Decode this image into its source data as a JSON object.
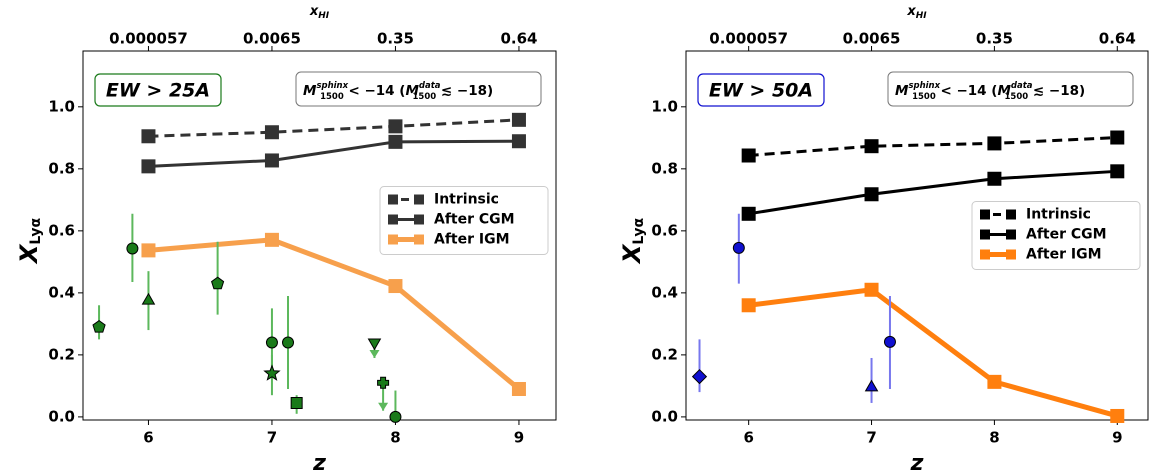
{
  "chart_data": [
    {
      "type": "line",
      "xlabel": "z",
      "ylabel_parts": [
        "X",
        "Lyα"
      ],
      "top_axis_label_parts": [
        "x",
        "HI"
      ],
      "box_label": "EW > 25A",
      "box_color": "#1a7a1a",
      "note_parts": [
        "M",
        "sphinx",
        "1500",
        " < −14 (",
        "M",
        "data",
        "1500",
        " ≲ −18)"
      ],
      "xlim": [
        5.47,
        9.3
      ],
      "ylim": [
        -0.01,
        1.18
      ],
      "xticks": [
        6,
        7,
        8,
        9
      ],
      "x2ticks": [
        {
          "value": 6,
          "label": "0.000057"
        },
        {
          "value": 7,
          "label": "0.0065"
        },
        {
          "value": 8,
          "label": "0.35"
        },
        {
          "value": 9,
          "label": "0.64"
        }
      ],
      "yticks": [
        {
          "value": 0,
          "label": "0.0"
        },
        {
          "value": 0.2,
          "label": "0.2"
        },
        {
          "value": 0.4,
          "label": "0.4"
        },
        {
          "value": 0.6,
          "label": "0.6"
        },
        {
          "value": 0.8,
          "label": "0.8"
        },
        {
          "value": 1.0,
          "label": "1.0"
        }
      ],
      "legend": "center right",
      "x": [
        6,
        7,
        8,
        9
      ],
      "series": [
        {
          "name": "Intrinsic",
          "color": "#333333",
          "dash": true,
          "values": [
            0.905,
            0.918,
            0.937,
            0.958
          ]
        },
        {
          "name": "After CGM",
          "color": "#333333",
          "dash": false,
          "values": [
            0.808,
            0.827,
            0.887,
            0.889
          ]
        },
        {
          "name": "After IGM",
          "color": "#f7a04c",
          "dash": false,
          "values": [
            0.537,
            0.571,
            0.422,
            0.09
          ]
        }
      ],
      "point_color": "#1a7a1a",
      "err_color": "#5cb85c",
      "points": [
        {
          "marker": "pentagon",
          "x": 5.6,
          "y": 0.29,
          "err_low": 0.25,
          "err_high": 0.36
        },
        {
          "marker": "circle",
          "x": 5.87,
          "y": 0.543,
          "err_low": 0.435,
          "err_high": 0.655
        },
        {
          "marker": "triangle",
          "x": 6.0,
          "y": 0.375,
          "err_low": 0.28,
          "err_high": 0.47
        },
        {
          "marker": "pentagon",
          "x": 6.56,
          "y": 0.43,
          "err_low": 0.33,
          "err_high": 0.565
        },
        {
          "marker": "circle",
          "x": 7.0,
          "y": 0.24,
          "err_low": 0.13,
          "err_high": 0.35
        },
        {
          "marker": "star",
          "x": 7.0,
          "y": 0.14,
          "err_low": 0.07,
          "err_high": 0.2
        },
        {
          "marker": "circle",
          "x": 7.13,
          "y": 0.24,
          "err_low": 0.09,
          "err_high": 0.39
        },
        {
          "marker": "square",
          "x": 7.2,
          "y": 0.045,
          "err_low": 0.01,
          "err_high": 0.07
        },
        {
          "marker": "triangle-down",
          "x": 7.83,
          "y": 0.24,
          "err_low": 0.19,
          "limit": "upper"
        },
        {
          "marker": "plus",
          "x": 7.9,
          "y": 0.11,
          "err_low": 0.02,
          "limit": "upper"
        },
        {
          "marker": "circle",
          "x": 8.0,
          "y": 0.0,
          "err_low": 0.0,
          "err_high": 0.085
        }
      ]
    },
    {
      "type": "line",
      "xlabel": "z",
      "ylabel_parts": [
        "X",
        "Lyα"
      ],
      "top_axis_label_parts": [
        "x",
        "HI"
      ],
      "box_label": "EW > 50A",
      "box_color": "#1010d0",
      "note_parts": [
        "M",
        "sphinx",
        "1500",
        " < −14 (",
        "M",
        "data",
        "1500",
        " ≲ −18)"
      ],
      "xlim": [
        5.49,
        9.25
      ],
      "ylim": [
        -0.01,
        1.18
      ],
      "xticks": [
        6,
        7,
        8,
        9
      ],
      "x2ticks": [
        {
          "value": 6,
          "label": "0.000057"
        },
        {
          "value": 7,
          "label": "0.0065"
        },
        {
          "value": 8,
          "label": "0.35"
        },
        {
          "value": 9,
          "label": "0.64"
        }
      ],
      "yticks": [
        {
          "value": 0,
          "label": "0.0"
        },
        {
          "value": 0.2,
          "label": "0.2"
        },
        {
          "value": 0.4,
          "label": "0.4"
        },
        {
          "value": 0.6,
          "label": "0.6"
        },
        {
          "value": 0.8,
          "label": "0.8"
        },
        {
          "value": 1.0,
          "label": "1.0"
        }
      ],
      "legend": "center right",
      "x": [
        6,
        7,
        8,
        9
      ],
      "series": [
        {
          "name": "Intrinsic",
          "color": "#000000",
          "dash": true,
          "values": [
            0.843,
            0.873,
            0.882,
            0.901
          ]
        },
        {
          "name": "After CGM",
          "color": "#000000",
          "dash": false,
          "values": [
            0.655,
            0.718,
            0.768,
            0.792
          ]
        },
        {
          "name": "After IGM",
          "color": "#ff7f0e",
          "dash": false,
          "values": [
            0.36,
            0.41,
            0.113,
            0.003
          ]
        }
      ],
      "point_color": "#1010d0",
      "err_color": "#7777ee",
      "points": [
        {
          "marker": "diamond",
          "x": 5.6,
          "y": 0.13,
          "err_low": 0.08,
          "err_high": 0.25
        },
        {
          "marker": "circle",
          "x": 5.92,
          "y": 0.545,
          "err_low": 0.43,
          "err_high": 0.655
        },
        {
          "marker": "triangle",
          "x": 7.0,
          "y": 0.095,
          "err_low": 0.045,
          "err_high": 0.19
        },
        {
          "marker": "circle",
          "x": 7.15,
          "y": 0.242,
          "err_low": 0.09,
          "err_high": 0.39
        }
      ]
    }
  ]
}
